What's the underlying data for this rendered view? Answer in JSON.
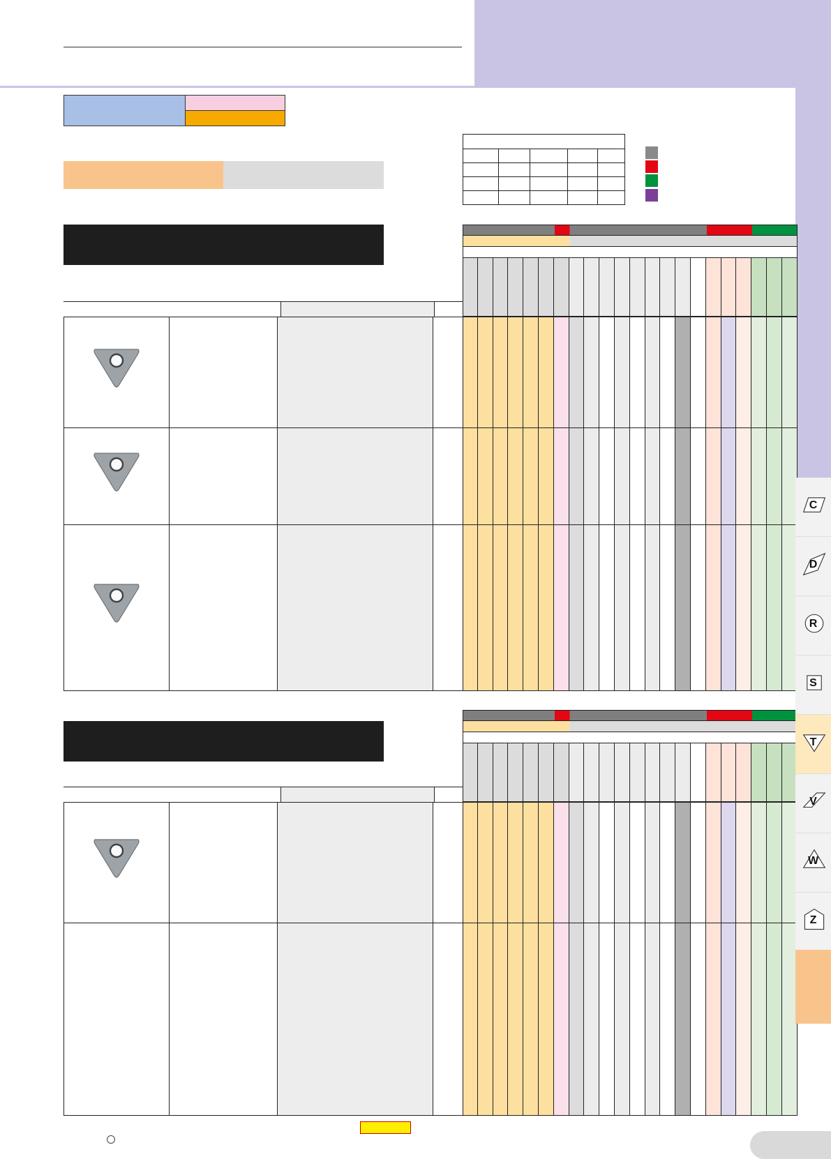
{
  "header": {
    "title": ""
  },
  "colors": {
    "header_purple": "#c9c4e3",
    "grade_blue": "#a9c0e6",
    "grade_pink": "#f6cfe0",
    "grade_orange": "#f6aa00",
    "band_peach": "#f9c48c",
    "band_grey": "#dcdcdc",
    "legend_grey": "#8a8a8a",
    "legend_red": "#e30613",
    "legend_green": "#00923f",
    "legend_purple": "#7b3f99"
  },
  "legend_swatches": [
    {
      "name": "legend-swatch-grey",
      "color": "#8a8a8a"
    },
    {
      "name": "legend-swatch-red",
      "color": "#e30613"
    },
    {
      "name": "legend-swatch-green",
      "color": "#00923f"
    },
    {
      "name": "legend-swatch-purple",
      "color": "#7b3f99"
    }
  ],
  "side_tabs": [
    {
      "letter": "C",
      "shape": "parallelogram",
      "active": false
    },
    {
      "letter": "D",
      "shape": "rhombus",
      "active": false
    },
    {
      "letter": "R",
      "shape": "circle",
      "active": false
    },
    {
      "letter": "S",
      "shape": "square",
      "active": false
    },
    {
      "letter": "T",
      "shape": "triangle",
      "active": true
    },
    {
      "letter": "V",
      "shape": "rhombus-wide",
      "active": false
    },
    {
      "letter": "W",
      "shape": "trigon",
      "active": false
    },
    {
      "letter": "Z",
      "shape": "pentagon",
      "active": false
    }
  ],
  "grade_column_colors": [
    "#fde0a0",
    "#fde0a0",
    "#fde0a0",
    "#fde0a0",
    "#fde0a0",
    "#fde0a0",
    "#f9e0ea",
    "#dcdcdc",
    "#ececec",
    "#ffffff",
    "#ececec",
    "#ffffff",
    "#ececec",
    "#ffffff",
    "#b0b0b0",
    "#ffffff",
    "#fde3d8",
    "#ddd8ee",
    "#fdeee8",
    "#e2efdf",
    "#d6ead2",
    "#e2efdf"
  ],
  "header_grade_colors": [
    "#dcdcdc",
    "#dcdcdc",
    "#dcdcdc",
    "#dcdcdc",
    "#dcdcdc",
    "#dcdcdc",
    "#dcdcdc",
    "#ececec",
    "#ececec",
    "#ececec",
    "#ececec",
    "#ececec",
    "#ececec",
    "#ececec",
    "#ececec",
    "#ffffff",
    "#fde3d8",
    "#fde3d8",
    "#fde3d8",
    "#c6e0c0",
    "#c6e0c0",
    "#c6e0c0"
  ],
  "tables": [
    {
      "rows": [
        {
          "image": "triangle-insert-1"
        },
        {
          "image": "triangle-insert-2"
        },
        {
          "image": "triangle-insert-3"
        }
      ]
    },
    {
      "rows": [
        {
          "image": "triangle-insert-4"
        },
        {
          "image": ""
        }
      ]
    }
  ]
}
